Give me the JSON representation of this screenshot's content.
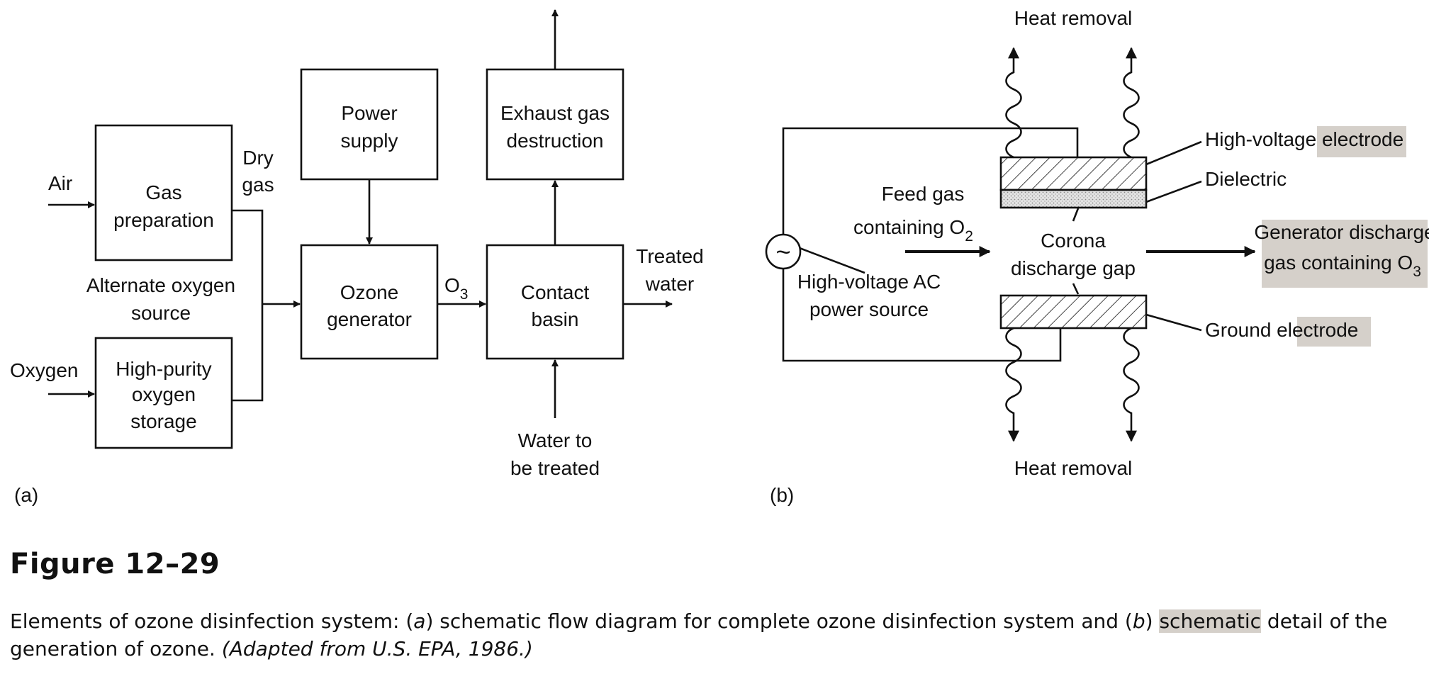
{
  "panel_a": {
    "label": "(a)",
    "air": "Air",
    "dry_gas": [
      "Dry",
      "gas"
    ],
    "gas_preparation": [
      "Gas",
      "preparation"
    ],
    "alternate_source": [
      "Alternate oxygen",
      "source"
    ],
    "oxygen": "Oxygen",
    "oxygen_storage": [
      "High-purity",
      "oxygen",
      "storage"
    ],
    "power_supply": [
      "Power",
      "supply"
    ],
    "ozone_generator": [
      "Ozone",
      "generator"
    ],
    "o3_main": "O",
    "o3_sub": "3",
    "exhaust": [
      "Exhaust gas",
      "destruction"
    ],
    "contact_basin": [
      "Contact",
      "basin"
    ],
    "treated_water": [
      "Treated",
      "water"
    ],
    "water_in": [
      "Water to",
      "be treated"
    ]
  },
  "panel_b": {
    "label": "(b)",
    "heat_top": "Heat removal",
    "heat_bottom": "Heat removal",
    "hv_electrode": "High-voltage electrode",
    "dielectric": "Dielectric",
    "feed_gas_1": "Feed gas",
    "feed_gas_2_main": "containing O",
    "feed_gas_2_sub": "2",
    "corona": [
      "Corona",
      "discharge gap"
    ],
    "discharge_1": "Generator discharge",
    "discharge_2_main": "gas containing O",
    "discharge_2_sub": "3",
    "ac_source": [
      "High-voltage AC",
      "power source"
    ],
    "ac_symbol": "~",
    "ground_electrode": "Ground electrode"
  },
  "figure": {
    "title": "Figure 12–29",
    "caption_p1": "Elements of ozone disinfection system: (",
    "caption_a": "a",
    "caption_p2": ") schematic flow diagram for complete ozone disinfection system and (",
    "caption_b": "b",
    "caption_p3": ") ",
    "caption_hl": "schematic",
    "caption_p4": " detail of the generation of ozone. ",
    "caption_source": "(Adapted from U.S. EPA, 1986.)"
  }
}
